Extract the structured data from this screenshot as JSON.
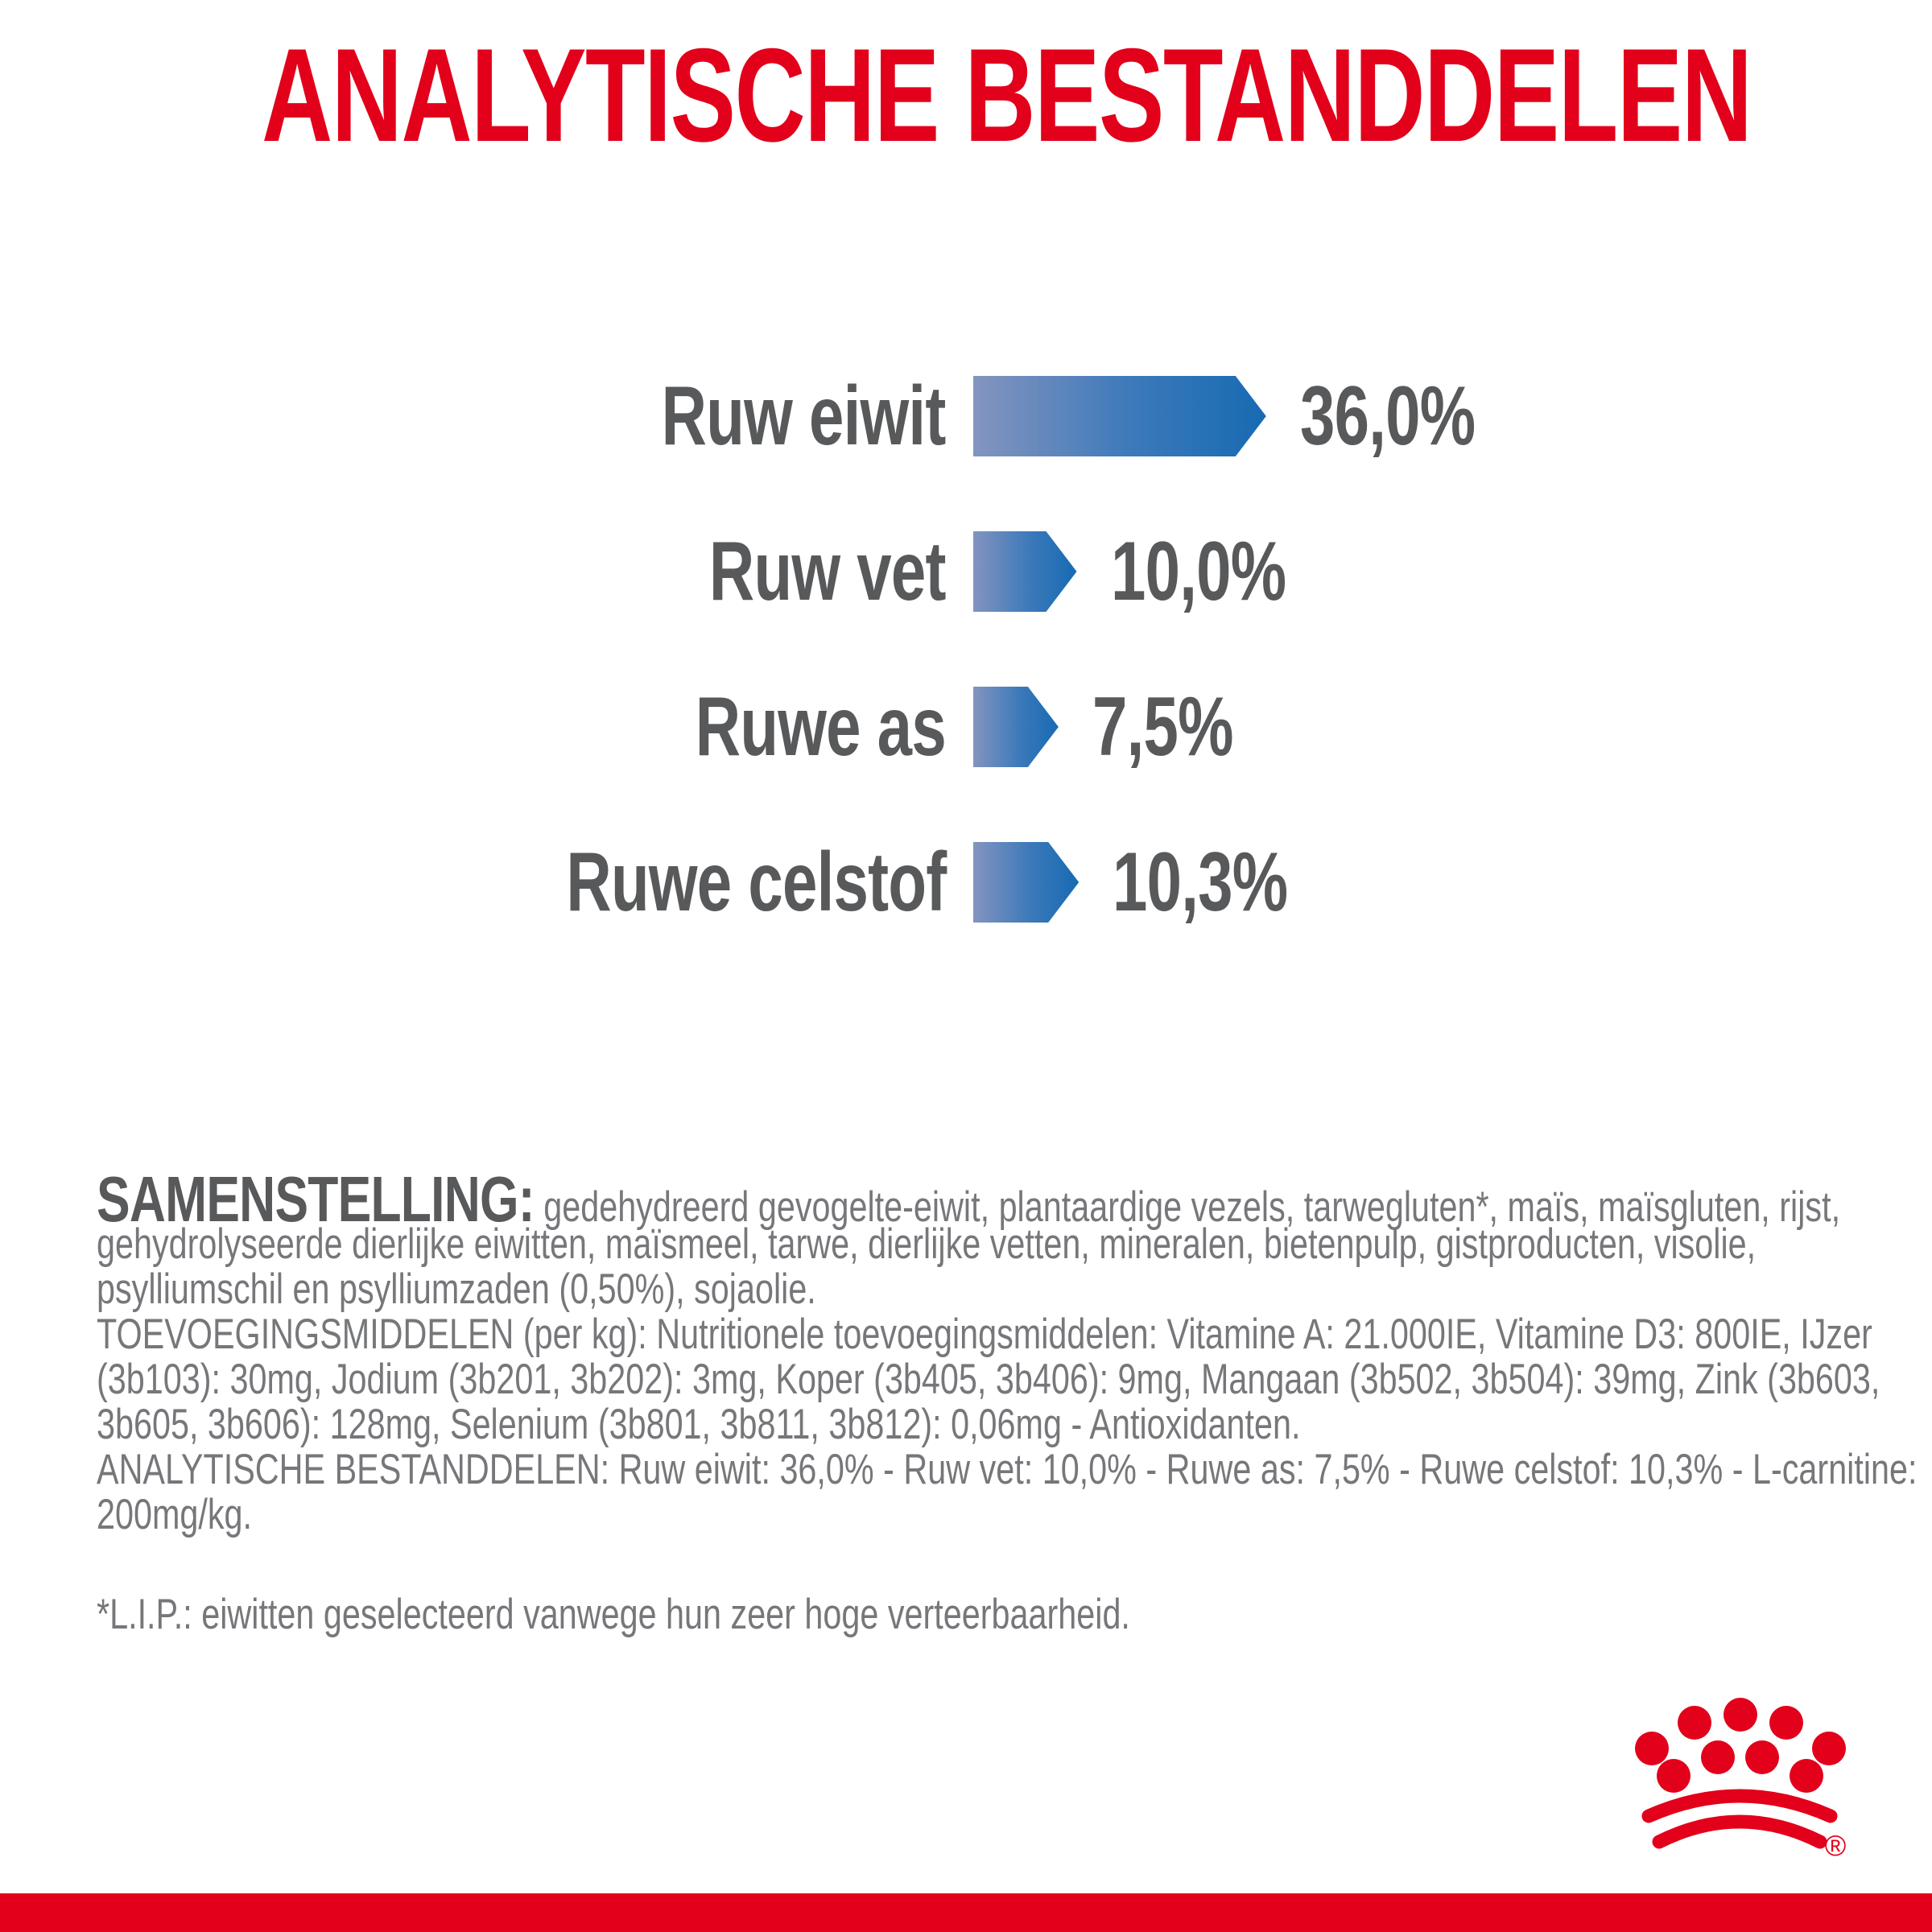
{
  "title": "ANALYTISCHE BESTANDDELEN",
  "colors": {
    "brand_red": "#e2001a",
    "heading_gray": "#58595b",
    "body_gray": "#76777a",
    "bar_gradient_start": "#8494bf",
    "bar_gradient_end": "#176ab2"
  },
  "chart_data": {
    "type": "bar",
    "orientation": "horizontal",
    "title": "ANALYTISCHE BESTANDDELEN",
    "categories": [
      "Ruw eiwit",
      "Ruw vet",
      "Ruwe as",
      "Ruwe celstof"
    ],
    "values": [
      36.0,
      10.0,
      7.5,
      10.3
    ],
    "value_labels": [
      "36,0%",
      "10,0%",
      "7,5%",
      "10,3%"
    ],
    "unit": "%",
    "xlim": [
      0,
      40
    ],
    "grid": false,
    "legend": false,
    "rows": [
      {
        "label": "Ruw eiwit",
        "value": 36.0,
        "display": "36,0%"
      },
      {
        "label": "Ruw vet",
        "value": 10.0,
        "display": "10,0%"
      },
      {
        "label": "Ruwe as",
        "value": 7.5,
        "display": "7,5%"
      },
      {
        "label": "Ruwe celstof",
        "value": 10.3,
        "display": "10,3%"
      }
    ]
  },
  "composition": {
    "lead": "SAMENSTELLING:",
    "first_line": "gedehydreerd gevogelte-eiwit, plantaardige vezels, tarwegluten*, maïs, maïsgluten, rijst,",
    "lines": [
      "gehydrolyseerde dierlijke eiwitten, maïsmeel, tarwe, dierlijke vetten, mineralen, bietenpulp, gistproducten, visolie,",
      "psylliumschil en psylliumzaden (0,50%), sojaolie.",
      "TOEVOEGINGSMIDDELEN (per kg): Nutritionele toevoegingsmiddelen: Vitamine A: 21.000IE, Vitamine D3: 800IE, IJzer",
      "(3b103): 30mg, Jodium (3b201, 3b202): 3mg, Koper (3b405, 3b406): 9mg, Mangaan (3b502, 3b504): 39mg, Zink (3b603,",
      "3b605, 3b606): 128mg, Selenium (3b801, 3b811, 3b812): 0,06mg - Antioxidanten.",
      "ANALYTISCHE BESTANDDELEN: Ruw eiwit: 36,0% - Ruw vet: 10,0% - Ruwe as: 7,5% - Ruwe celstof: 10,3% - L-carnitine:",
      "200mg/kg."
    ]
  },
  "footnote": "*L.I.P.: eiwitten geselecteerd vanwege hun zeer hoge verteerbaarheid.",
  "logo": {
    "label": "Royal Canin crown",
    "registered_mark": "®"
  }
}
